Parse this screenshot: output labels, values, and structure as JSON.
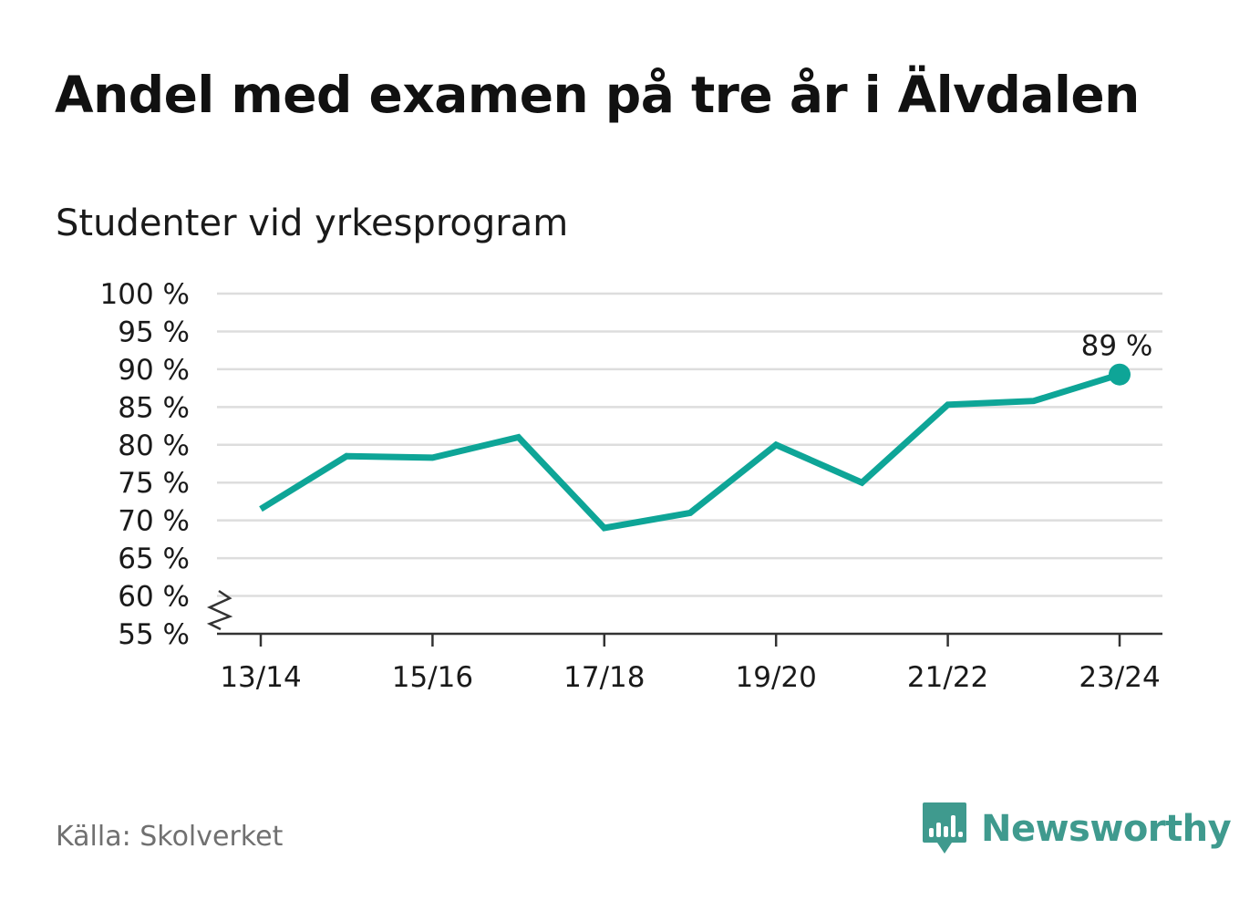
{
  "title": "Andel med examen på tre år i Älvdalen",
  "subtitle": "Studenter vid yrkesprogram",
  "source": "Källa: Skolverket",
  "brand": {
    "name": "Newsworthy",
    "color": "#3f9a8e",
    "icon": "bar-chart-speech-bubble-icon"
  },
  "colors": {
    "line": "#0ea597",
    "grid": "#dddddd",
    "axis": "#333333"
  },
  "chart_data": {
    "type": "line",
    "x": [
      "13/14",
      "14/15",
      "15/16",
      "16/17",
      "17/18",
      "18/19",
      "19/20",
      "20/21",
      "21/22",
      "22/23",
      "23/24"
    ],
    "x_tick_labels": [
      "13/14",
      "15/16",
      "17/18",
      "19/20",
      "21/22",
      "23/24"
    ],
    "series": [
      {
        "values": [
          71.5,
          78.5,
          78.3,
          81,
          69,
          71,
          80,
          75,
          85.3,
          85.8,
          89.3
        ]
      }
    ],
    "y_ticks": [
      "55 %",
      "60 %",
      "65 %",
      "70 %",
      "75 %",
      "80 %",
      "85 %",
      "90 %",
      "95 %",
      "100 %"
    ],
    "ylim": [
      55,
      100
    ],
    "y_axis_break": true,
    "grid": true,
    "end_label": "89 %"
  }
}
